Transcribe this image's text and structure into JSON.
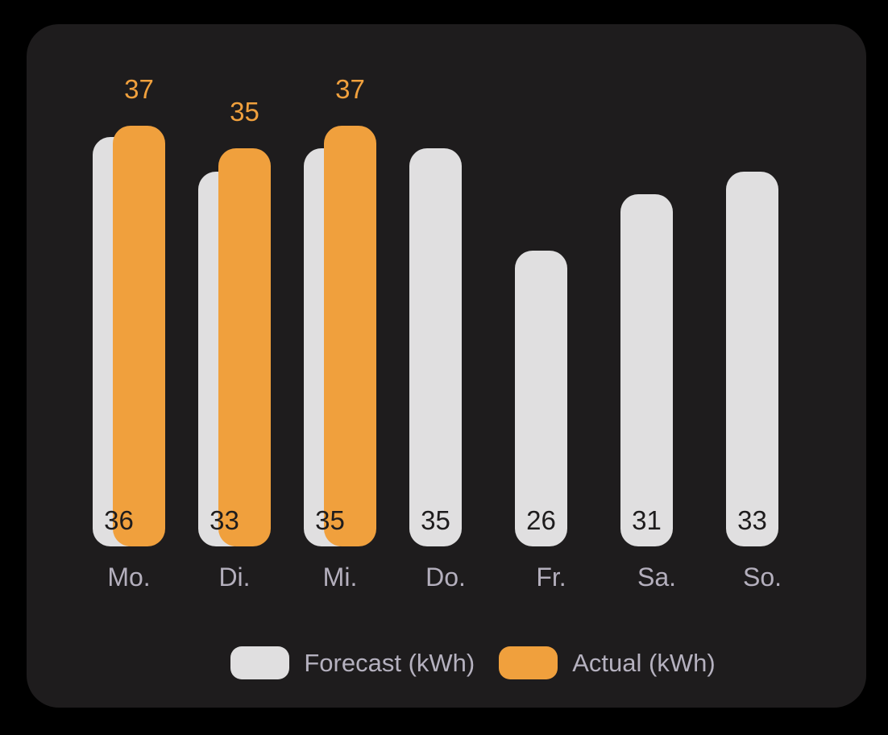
{
  "colors": {
    "page_background": "#000000",
    "card_background": "#1e1c1d",
    "forecast_bar": "#e0dfe0",
    "actual_bar": "#f0a03d",
    "forecast_value_text": "#1e1c1d",
    "actual_value_text": "#f0a03d",
    "axis_label_text": "#b4afbd",
    "legend_text": "#b5b1bf"
  },
  "chart_data": {
    "type": "bar",
    "title": "",
    "categories": [
      "Mo.",
      "Di.",
      "Mi.",
      "Do.",
      "Fr.",
      "Sa.",
      "So."
    ],
    "series": [
      {
        "name": "Forecast (kWh)",
        "color": "#e0dfe0",
        "values": [
          36,
          33,
          35,
          35,
          26,
          31,
          33
        ]
      },
      {
        "name": "Actual (kWh)",
        "color": "#f0a03d",
        "values": [
          37,
          35,
          37,
          null,
          null,
          null,
          null
        ]
      }
    ],
    "value_labels": {
      "forecast": [
        "36",
        "33",
        "35",
        "35",
        "26",
        "31",
        "33"
      ],
      "actual": [
        "37",
        "35",
        "37",
        null,
        null,
        null,
        null
      ]
    },
    "xlabel": "",
    "ylabel": "",
    "grid": false,
    "legend_position": "bottom"
  },
  "legend": {
    "items": [
      {
        "label": "Forecast (kWh)",
        "color": "#e0dfe0"
      },
      {
        "label": "Actual (kWh)",
        "color": "#f0a03d"
      }
    ]
  }
}
